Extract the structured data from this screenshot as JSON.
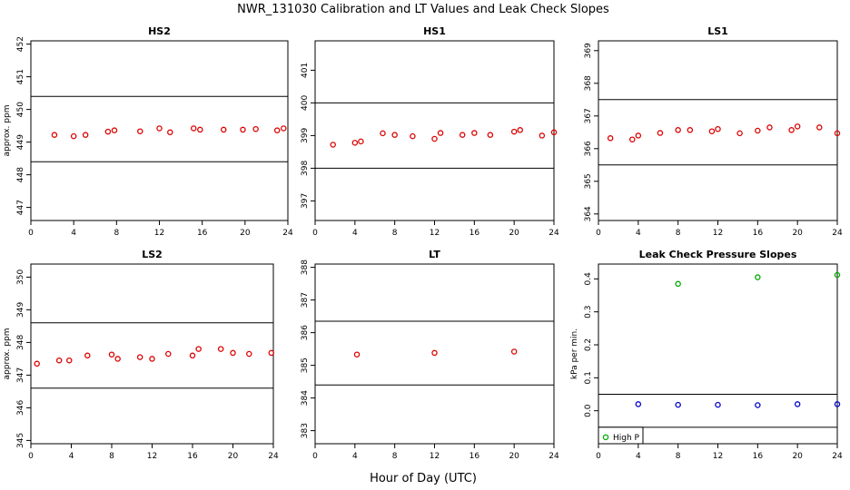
{
  "figure": {
    "title": "NWR_131030  Calibration and LT Values and Leak Check Slopes",
    "xlabel": "Hour of Day (UTC)"
  },
  "chart_data": [
    {
      "type": "scatter",
      "title": "HS2",
      "ylabel": "approx. ppm",
      "xlim": [
        0,
        24
      ],
      "ylim": [
        446.6,
        452.1
      ],
      "xticks": [
        0,
        4,
        8,
        12,
        16,
        20,
        24
      ],
      "yticks": [
        447,
        448,
        449,
        450,
        451,
        452
      ],
      "hlines": [
        450.4,
        448.4
      ],
      "series": [
        {
          "color": "#dd0000",
          "points": [
            [
              2.2,
              449.22
            ],
            [
              4.0,
              449.18
            ],
            [
              5.1,
              449.22
            ],
            [
              7.2,
              449.32
            ],
            [
              7.8,
              449.36
            ],
            [
              10.2,
              449.33
            ],
            [
              12.0,
              449.42
            ],
            [
              13.0,
              449.3
            ],
            [
              15.2,
              449.42
            ],
            [
              15.8,
              449.38
            ],
            [
              18.0,
              449.38
            ],
            [
              19.8,
              449.38
            ],
            [
              21.0,
              449.4
            ],
            [
              23.0,
              449.36
            ],
            [
              23.6,
              449.42
            ]
          ]
        }
      ]
    },
    {
      "type": "scatter",
      "title": "HS1",
      "ylabel": "",
      "xlim": [
        0,
        24
      ],
      "ylim": [
        396.4,
        401.9
      ],
      "xticks": [
        0,
        4,
        8,
        12,
        16,
        20,
        24
      ],
      "yticks": [
        397,
        398,
        399,
        400,
        401
      ],
      "hlines": [
        400.0,
        398.0
      ],
      "series": [
        {
          "color": "#dd0000",
          "points": [
            [
              1.8,
              398.72
            ],
            [
              4.0,
              398.78
            ],
            [
              4.6,
              398.82
            ],
            [
              6.8,
              399.07
            ],
            [
              8.0,
              399.02
            ],
            [
              9.8,
              398.98
            ],
            [
              12.0,
              398.9
            ],
            [
              12.6,
              399.08
            ],
            [
              14.8,
              399.02
            ],
            [
              16.0,
              399.08
            ],
            [
              17.6,
              399.02
            ],
            [
              20.0,
              399.12
            ],
            [
              20.6,
              399.17
            ],
            [
              22.8,
              399.0
            ],
            [
              24.0,
              399.1
            ]
          ]
        }
      ]
    },
    {
      "type": "scatter",
      "title": "LS1",
      "ylabel": "",
      "xlim": [
        0,
        24
      ],
      "ylim": [
        363.8,
        369.3
      ],
      "xticks": [
        0,
        4,
        8,
        12,
        16,
        20,
        24
      ],
      "yticks": [
        364,
        365,
        366,
        367,
        368,
        369
      ],
      "hlines": [
        367.5,
        365.5
      ],
      "series": [
        {
          "color": "#dd0000",
          "points": [
            [
              1.2,
              366.32
            ],
            [
              3.4,
              366.28
            ],
            [
              4.0,
              366.4
            ],
            [
              6.2,
              366.48
            ],
            [
              8.0,
              366.57
            ],
            [
              9.2,
              366.57
            ],
            [
              11.4,
              366.53
            ],
            [
              12.0,
              366.6
            ],
            [
              14.2,
              366.47
            ],
            [
              16.0,
              366.55
            ],
            [
              17.2,
              366.65
            ],
            [
              19.4,
              366.57
            ],
            [
              20.0,
              366.68
            ],
            [
              22.2,
              366.65
            ],
            [
              24.0,
              366.47
            ]
          ]
        }
      ]
    },
    {
      "type": "scatter",
      "title": "LS2",
      "ylabel": "approx. ppm",
      "xlim": [
        0,
        24
      ],
      "ylim": [
        344.9,
        350.4
      ],
      "xticks": [
        0,
        4,
        8,
        12,
        16,
        20,
        24
      ],
      "yticks": [
        345,
        346,
        347,
        348,
        349,
        350
      ],
      "hlines": [
        348.6,
        346.6
      ],
      "series": [
        {
          "color": "#dd0000",
          "points": [
            [
              0.6,
              347.35
            ],
            [
              2.8,
              347.45
            ],
            [
              3.8,
              347.45
            ],
            [
              5.6,
              347.6
            ],
            [
              8.0,
              347.63
            ],
            [
              8.6,
              347.5
            ],
            [
              10.8,
              347.55
            ],
            [
              12.0,
              347.5
            ],
            [
              13.6,
              347.65
            ],
            [
              16.0,
              347.6
            ],
            [
              16.6,
              347.8
            ],
            [
              18.8,
              347.8
            ],
            [
              20.0,
              347.68
            ],
            [
              21.6,
              347.65
            ],
            [
              23.8,
              347.68
            ]
          ]
        }
      ]
    },
    {
      "type": "scatter",
      "title": "LT",
      "ylabel": "",
      "xlim": [
        0,
        24
      ],
      "ylim": [
        382.6,
        388.1
      ],
      "xticks": [
        0,
        4,
        8,
        12,
        16,
        20,
        24
      ],
      "yticks": [
        383,
        384,
        385,
        386,
        387,
        388
      ],
      "hlines": [
        386.35,
        384.4
      ],
      "series": [
        {
          "color": "#dd0000",
          "points": [
            [
              4.2,
              385.33
            ],
            [
              12.0,
              385.38
            ],
            [
              20.0,
              385.42
            ]
          ]
        }
      ]
    },
    {
      "type": "scatter",
      "title": "Leak Check Pressure Slopes",
      "ylabel": "kPa per min.",
      "xlim": [
        0,
        24
      ],
      "ylim": [
        -0.1,
        0.445
      ],
      "xticks": [
        0,
        4,
        8,
        12,
        16,
        20,
        24
      ],
      "yticks": [
        0.0,
        0.1,
        0.2,
        0.3,
        0.4
      ],
      "ytick_labels": [
        "0.0",
        "0.1",
        "0.2",
        "0.3",
        "0.4"
      ],
      "hlines": [
        0.05,
        -0.05
      ],
      "legend": {
        "placement": "bottom-left",
        "entries": [
          {
            "label": "High P",
            "color": "#00aa00"
          }
        ]
      },
      "series": [
        {
          "name": "High P",
          "color": "#00aa00",
          "points": [
            [
              8.0,
              0.385
            ],
            [
              16.0,
              0.405
            ],
            [
              24.0,
              0.412
            ]
          ]
        },
        {
          "color": "#0000cc",
          "points": [
            [
              4.0,
              0.02
            ],
            [
              8.0,
              0.018
            ],
            [
              12.0,
              0.018
            ],
            [
              16.0,
              0.017
            ],
            [
              20.0,
              0.02
            ],
            [
              24.0,
              0.02
            ]
          ]
        }
      ]
    }
  ]
}
